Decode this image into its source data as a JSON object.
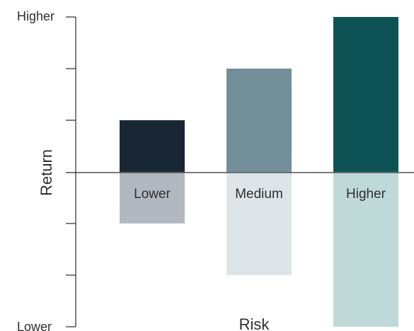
{
  "chart_data": {
    "type": "bar",
    "xlabel": "Risk",
    "ylabel": "Return",
    "ytick_labels": {
      "top": "Higher",
      "bottom": "Lower"
    },
    "ylim": [
      -3,
      3
    ],
    "yticks": [
      -3,
      -2,
      -1,
      0,
      1,
      2,
      3
    ],
    "grid": false,
    "categories": [
      "Lower",
      "Medium",
      "Higher"
    ],
    "series": [
      {
        "values": [
          1,
          2,
          3
        ],
        "colors": [
          "#192735",
          "#728f99",
          "#0d5356"
        ]
      },
      {
        "values": [
          -1,
          -2,
          -3
        ],
        "colors": [
          "#b3b8c0",
          "#dde5e8",
          "#bfd9d9"
        ]
      }
    ]
  }
}
